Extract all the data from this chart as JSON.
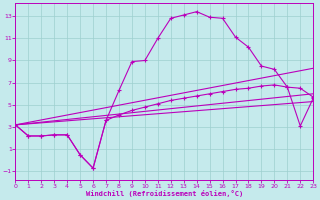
{
  "xlabel": "Windchill (Refroidissement éolien,°C)",
  "bg_color": "#c5eaec",
  "grid_color": "#9ecfcf",
  "line_color": "#bb00bb",
  "spine_color": "#bb00bb",
  "xlim": [
    0,
    23
  ],
  "ylim": [
    -1.8,
    14.2
  ],
  "xticks": [
    0,
    1,
    2,
    3,
    4,
    5,
    6,
    7,
    8,
    9,
    10,
    11,
    12,
    13,
    14,
    15,
    16,
    17,
    18,
    19,
    20,
    21,
    22,
    23
  ],
  "yticks": [
    -1,
    1,
    3,
    5,
    7,
    9,
    11,
    13
  ],
  "curve1_x": [
    0,
    1,
    2,
    3,
    4,
    5,
    6,
    7,
    8,
    9,
    10,
    11,
    12,
    13,
    14,
    15,
    16,
    17,
    18,
    19,
    20,
    21,
    22,
    23
  ],
  "curve1_y": [
    3.2,
    2.2,
    2.2,
    2.3,
    2.3,
    0.5,
    -0.7,
    3.6,
    6.3,
    8.9,
    9.0,
    11.0,
    12.8,
    13.1,
    13.4,
    12.9,
    12.8,
    11.1,
    10.2,
    8.5,
    8.2,
    6.6,
    6.5,
    5.7
  ],
  "curve2_x": [
    0,
    1,
    2,
    3,
    4,
    5,
    6,
    7,
    8,
    9,
    10,
    11,
    12,
    13,
    14,
    15,
    16,
    17,
    18,
    19,
    20,
    21,
    22,
    23
  ],
  "curve2_y": [
    3.2,
    2.2,
    2.2,
    2.3,
    2.3,
    0.5,
    -0.7,
    3.6,
    4.1,
    4.5,
    4.8,
    5.1,
    5.4,
    5.6,
    5.8,
    6.0,
    6.2,
    6.4,
    6.5,
    6.7,
    6.8,
    6.6,
    3.1,
    5.6
  ],
  "straight_lines": [
    {
      "x": [
        0,
        23
      ],
      "y": [
        3.2,
        5.3
      ]
    },
    {
      "x": [
        0,
        23
      ],
      "y": [
        3.2,
        6.0
      ]
    },
    {
      "x": [
        0,
        23
      ],
      "y": [
        3.2,
        8.3
      ]
    }
  ]
}
